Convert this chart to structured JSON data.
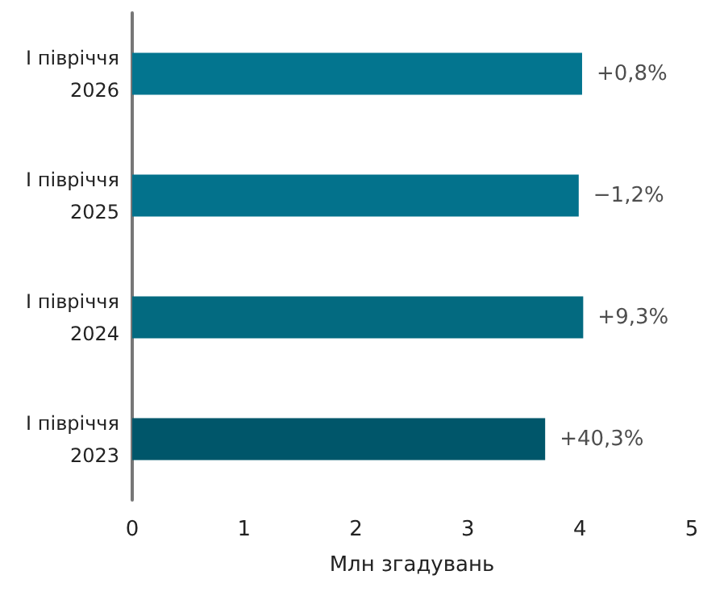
{
  "chart_data": {
    "type": "bar",
    "orientation": "horizontal",
    "xlabel": "Млн згадувань",
    "categories": [
      "І півріччя\n2026",
      "І півріччя\n2025",
      "І півріччя\n2024",
      "І півріччя\n2023"
    ],
    "values": [
      4.02,
      3.99,
      4.03,
      3.69
    ],
    "colors": [
      "#03758f",
      "#03728c",
      "#036a80",
      "#00566a"
    ],
    "xlim": [
      0,
      5
    ],
    "xticks": [
      0,
      1,
      2,
      3,
      4,
      5
    ],
    "grid": false,
    "annotations": [
      {
        "text": "+0,8%",
        "x": 4.02,
        "y": "І півріччя\n2026"
      },
      {
        "text": "−1,2%",
        "x": 3.99,
        "y": "І півріччя\n2025"
      },
      {
        "text": "+9,3%",
        "x": 4.03,
        "y": "І півріччя\n2024"
      },
      {
        "text": "+40,3%",
        "x": 3.69,
        "y": "І півріччя\n2023"
      }
    ]
  }
}
